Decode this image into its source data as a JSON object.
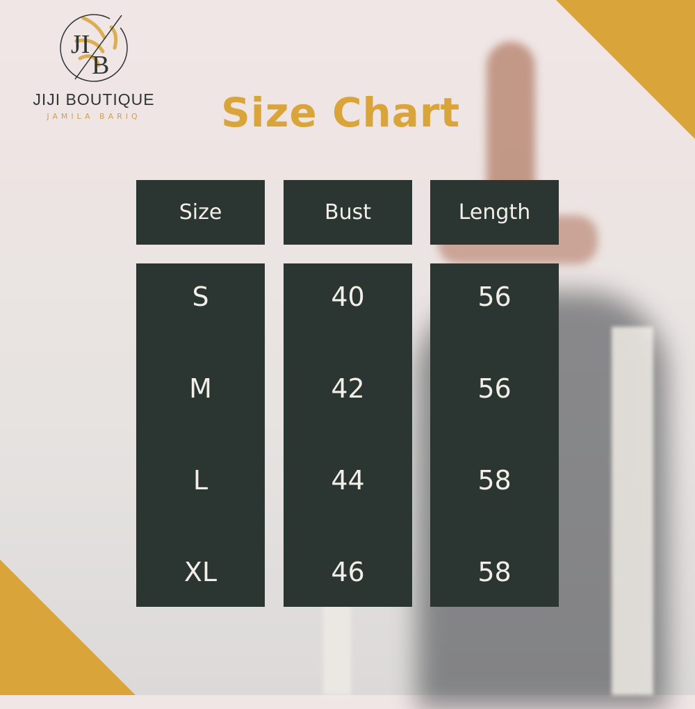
{
  "brand": {
    "monogram": "JB",
    "name": "JIJI BOUTIQUE",
    "tagline": "JAMILA BARIQ"
  },
  "title": "Size Chart",
  "colors": {
    "gold": "#d9a53a",
    "dark_green": "#2b3532",
    "text_light": "#f2efe8"
  },
  "table": {
    "headers": [
      "Size",
      "Bust",
      "Length"
    ],
    "rows": [
      [
        "S",
        "40",
        "56"
      ],
      [
        "M",
        "42",
        "56"
      ],
      [
        "L",
        "44",
        "58"
      ],
      [
        "XL",
        "46",
        "58"
      ]
    ]
  }
}
